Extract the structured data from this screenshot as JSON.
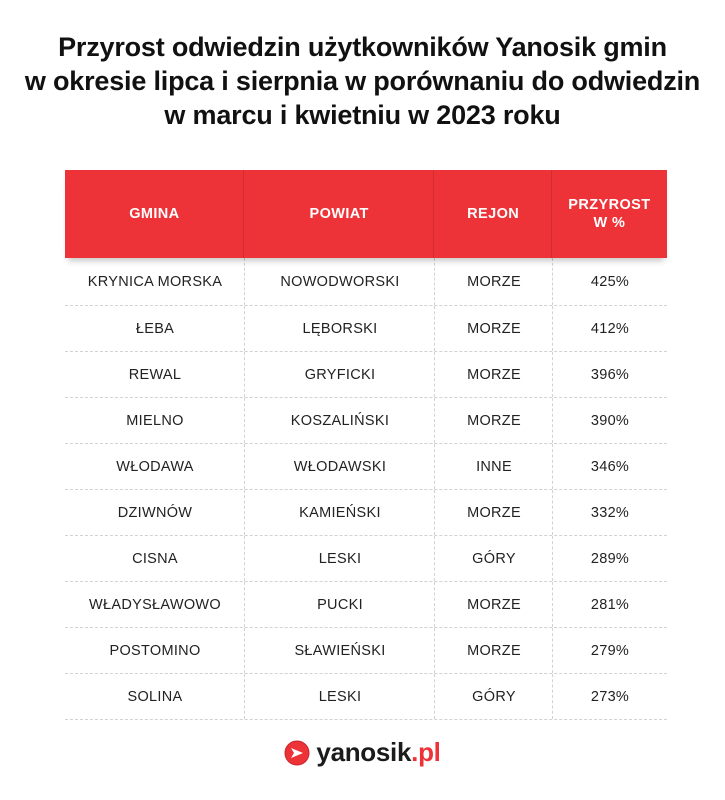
{
  "title": {
    "line1": "Przyrost odwiedzin użytkowników Yanosik gmin",
    "line2": "w okresie lipca i sierpnia w porównaniu do odwiedzin",
    "line3": "w marcu i kwietniu w 2023 roku"
  },
  "table": {
    "headers": {
      "gmina": "GMINA",
      "powiat": "POWIAT",
      "rejon": "REJON",
      "przyrost_line1": "PRZYROST",
      "przyrost_line2": "W %"
    },
    "rows": [
      {
        "gmina": "KRYNICA MORSKA",
        "powiat": "NOWODWORSKI",
        "rejon": "MORZE",
        "przyrost": "425%"
      },
      {
        "gmina": "ŁEBA",
        "powiat": "LĘBORSKI",
        "rejon": "MORZE",
        "przyrost": "412%"
      },
      {
        "gmina": "REWAL",
        "powiat": "GRYFICKI",
        "rejon": "MORZE",
        "przyrost": "396%"
      },
      {
        "gmina": "MIELNO",
        "powiat": "KOSZALIŃSKI",
        "rejon": "MORZE",
        "przyrost": "390%"
      },
      {
        "gmina": "WŁODAWA",
        "powiat": "WŁODAWSKI",
        "rejon": "INNE",
        "przyrost": "346%"
      },
      {
        "gmina": "DZIWNÓW",
        "powiat": "KAMIEŃSKI",
        "rejon": "MORZE",
        "przyrost": "332%"
      },
      {
        "gmina": "CISNA",
        "powiat": "LESKI",
        "rejon": "GÓRY",
        "przyrost": "289%"
      },
      {
        "gmina": "WŁADYSŁAWOWO",
        "powiat": "PUCKI",
        "rejon": "MORZE",
        "przyrost": "281%"
      },
      {
        "gmina": "POSTOMINO",
        "powiat": "SŁAWIEŃSKI",
        "rejon": "MORZE",
        "przyrost": "279%"
      },
      {
        "gmina": "SOLINA",
        "powiat": "LESKI",
        "rejon": "GÓRY",
        "przyrost": "273%"
      }
    ]
  },
  "logo": {
    "name": "yanosik",
    "tld": ".pl",
    "icon": "yanosik-logo-icon",
    "brand_color": "#ee3338"
  }
}
